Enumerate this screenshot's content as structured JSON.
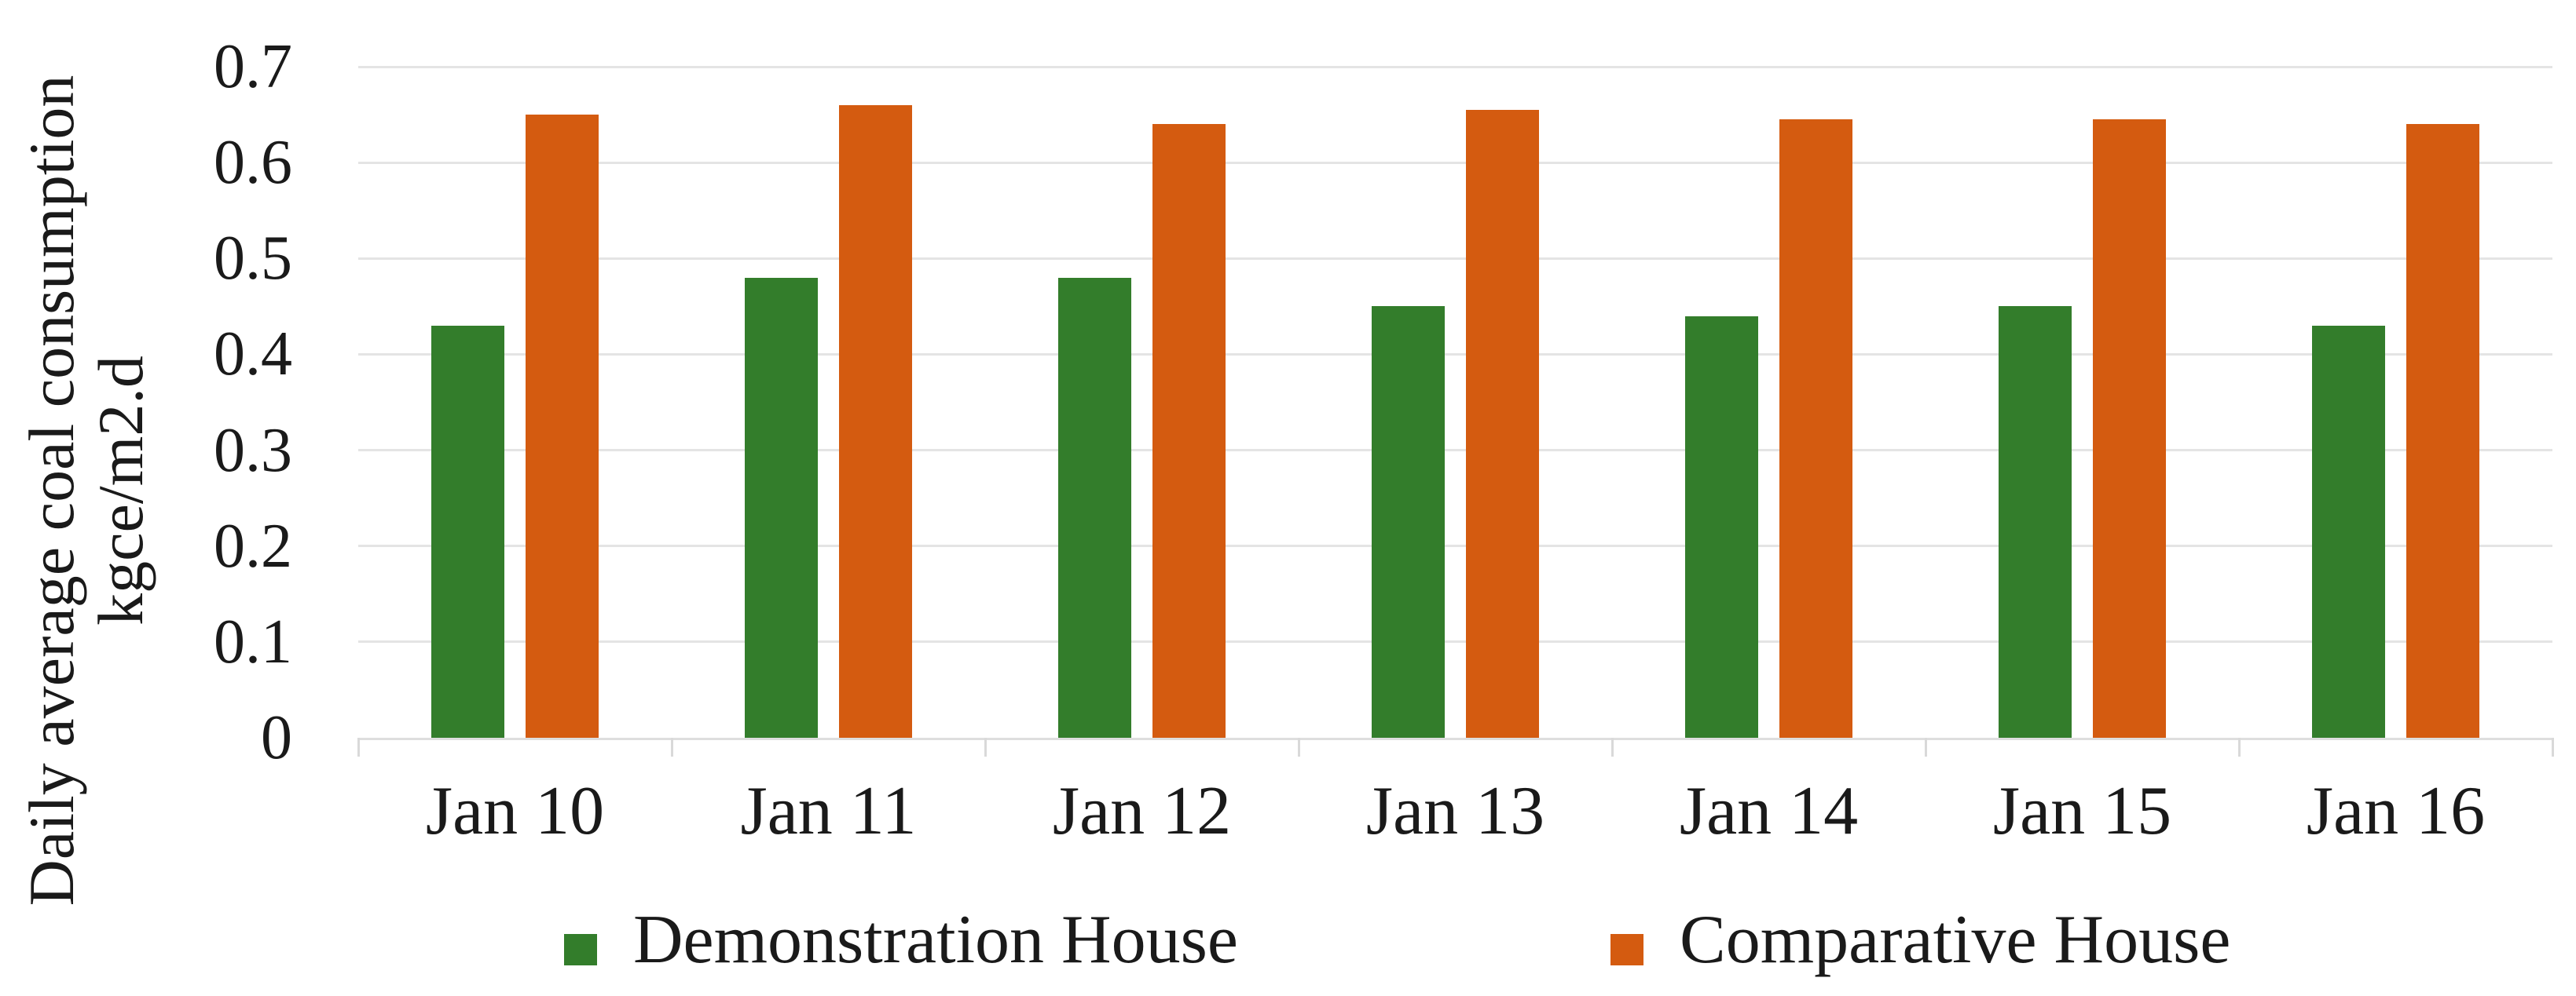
{
  "chart_data": {
    "type": "bar",
    "title": "",
    "categories": [
      "Jan 10",
      "Jan 11",
      "Jan 12",
      "Jan 13",
      "Jan 14",
      "Jan 15",
      "Jan 16"
    ],
    "series": [
      {
        "name": "Demonstration House",
        "color": "#337d2b",
        "values": [
          0.43,
          0.48,
          0.48,
          0.45,
          0.44,
          0.45,
          0.43
        ]
      },
      {
        "name": "Comparative House",
        "color": "#d45b10",
        "values": [
          0.65,
          0.66,
          0.64,
          0.655,
          0.645,
          0.645,
          0.64
        ]
      }
    ],
    "ylabel_line1": "Daily average coal consumption",
    "ylabel_line2": "kgce/m2.d",
    "ylim": [
      0,
      0.7
    ],
    "ytick_step": 0.1,
    "yticks": [
      "0",
      "0.1",
      "0.2",
      "0.3",
      "0.4",
      "0.5",
      "0.6",
      "0.7"
    ],
    "grid": "horizontal",
    "legend_position": "bottom",
    "colors": {
      "grid": "#e4e4e4",
      "axis": "#d9d9d9",
      "text": "#1a1a1a",
      "background": "#ffffff"
    }
  }
}
